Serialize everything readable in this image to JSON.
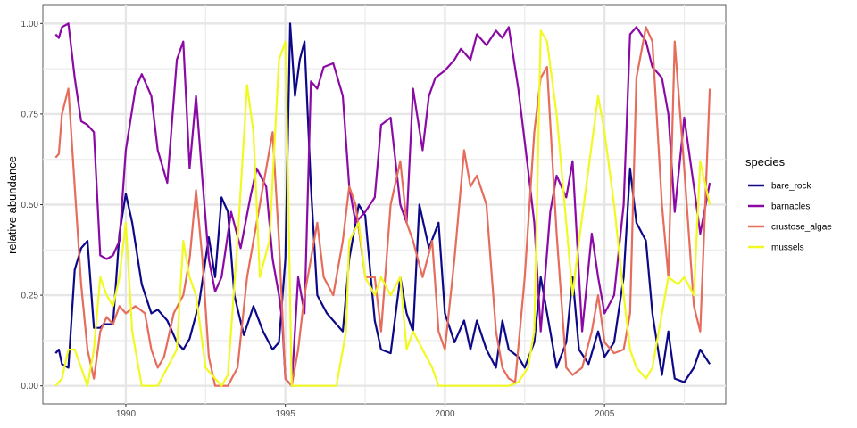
{
  "chart_data": {
    "type": "line",
    "xlabel": "",
    "ylabel": "relative abundance",
    "xlim": [
      1987.4,
      2008.8
    ],
    "ylim": [
      -0.05,
      1.05
    ],
    "x_ticks": [
      1990,
      1995,
      2000,
      2005
    ],
    "y_ticks": [
      0.0,
      0.25,
      0.5,
      0.75,
      1.0
    ],
    "x_tick_labels": [
      "1990",
      "1995",
      "2000",
      "2005"
    ],
    "y_tick_labels": [
      "0.00",
      "0.25",
      "0.50",
      "0.75",
      "1.00"
    ],
    "grid": true,
    "legend_title": "species",
    "legend_position": "right",
    "series": [
      {
        "name": "bare_rock",
        "color": "#0d0887",
        "x": [
          1987.8,
          1987.9,
          1988.0,
          1988.2,
          1988.4,
          1988.6,
          1988.8,
          1989.0,
          1989.2,
          1989.3,
          1989.6,
          1989.8,
          1990.0,
          1990.2,
          1990.5,
          1990.8,
          1991.0,
          1991.3,
          1991.6,
          1991.8,
          1992.0,
          1992.3,
          1992.5,
          1992.6,
          1992.8,
          1993.0,
          1993.2,
          1993.4,
          1993.7,
          1994.0,
          1994.3,
          1994.6,
          1994.8,
          1995.0,
          1995.15,
          1995.3,
          1995.45,
          1995.6,
          1995.8,
          1996.0,
          1996.3,
          1996.5,
          1996.8,
          1997.0,
          1997.3,
          1997.5,
          1997.8,
          1998.0,
          1998.3,
          1998.6,
          1998.8,
          1999.0,
          1999.2,
          1999.5,
          1999.8,
          2000.0,
          2000.3,
          2000.6,
          2000.8,
          2001.0,
          2001.3,
          2001.6,
          2001.8,
          2002.0,
          2002.3,
          2002.5,
          2002.8,
          2003.0,
          2003.3,
          2003.5,
          2003.8,
          2004.0,
          2004.2,
          2004.5,
          2004.8,
          2005.0,
          2005.3,
          2005.6,
          2005.8,
          2006.0,
          2006.3,
          2006.5,
          2006.8,
          2007.0,
          2007.2,
          2007.5,
          2007.8,
          2008.0,
          2008.3
        ],
        "y": [
          0.09,
          0.1,
          0.06,
          0.05,
          0.32,
          0.38,
          0.4,
          0.16,
          0.16,
          0.17,
          0.17,
          0.42,
          0.53,
          0.45,
          0.28,
          0.2,
          0.21,
          0.18,
          0.12,
          0.1,
          0.13,
          0.23,
          0.35,
          0.41,
          0.3,
          0.52,
          0.48,
          0.25,
          0.14,
          0.22,
          0.15,
          0.1,
          0.12,
          0.35,
          1.0,
          0.8,
          0.9,
          0.95,
          0.55,
          0.25,
          0.2,
          0.18,
          0.15,
          0.35,
          0.5,
          0.47,
          0.18,
          0.1,
          0.09,
          0.3,
          0.2,
          0.15,
          0.5,
          0.38,
          0.45,
          0.2,
          0.12,
          0.18,
          0.1,
          0.18,
          0.1,
          0.05,
          0.18,
          0.1,
          0.08,
          0.05,
          0.12,
          0.3,
          0.15,
          0.05,
          0.12,
          0.3,
          0.1,
          0.06,
          0.15,
          0.08,
          0.12,
          0.3,
          0.6,
          0.45,
          0.4,
          0.2,
          0.03,
          0.15,
          0.02,
          0.01,
          0.05,
          0.1,
          0.06
        ]
      },
      {
        "name": "barnacles",
        "color": "#8b0aa5",
        "x": [
          1987.8,
          1987.9,
          1988.0,
          1988.2,
          1988.4,
          1988.6,
          1988.8,
          1989.0,
          1989.2,
          1989.4,
          1989.6,
          1989.8,
          1990.0,
          1990.3,
          1990.5,
          1990.8,
          1991.0,
          1991.3,
          1991.6,
          1991.8,
          1992.0,
          1992.2,
          1992.4,
          1992.6,
          1992.8,
          1993.0,
          1993.3,
          1993.6,
          1993.9,
          1994.1,
          1994.4,
          1994.6,
          1994.8,
          1994.9,
          1995.0,
          1995.2,
          1995.4,
          1995.6,
          1995.8,
          1996.0,
          1996.2,
          1996.5,
          1996.8,
          1997.0,
          1997.2,
          1997.5,
          1997.8,
          1998.0,
          1998.3,
          1998.6,
          1998.8,
          1999.0,
          1999.3,
          1999.5,
          1999.7,
          2000.0,
          2000.3,
          2000.5,
          2000.8,
          2001.0,
          2001.3,
          2001.6,
          2001.8,
          2002.0,
          2002.3,
          2002.6,
          2002.8,
          2003.0,
          2003.3,
          2003.5,
          2003.8,
          2004.0,
          2004.3,
          2004.6,
          2004.8,
          2005.0,
          2005.3,
          2005.6,
          2005.8,
          2006.0,
          2006.3,
          2006.5,
          2006.8,
          2007.0,
          2007.2,
          2007.5,
          2007.8,
          2008.0,
          2008.3
        ],
        "y": [
          0.97,
          0.96,
          0.99,
          1.0,
          0.85,
          0.73,
          0.72,
          0.7,
          0.36,
          0.35,
          0.36,
          0.4,
          0.65,
          0.82,
          0.86,
          0.8,
          0.65,
          0.56,
          0.9,
          0.95,
          0.6,
          0.8,
          0.57,
          0.35,
          0.26,
          0.3,
          0.48,
          0.38,
          0.52,
          0.6,
          0.55,
          0.35,
          0.25,
          0.18,
          0.02,
          0.0,
          0.3,
          0.2,
          0.84,
          0.82,
          0.88,
          0.89,
          0.8,
          0.55,
          0.45,
          0.48,
          0.52,
          0.72,
          0.74,
          0.5,
          0.45,
          0.82,
          0.65,
          0.8,
          0.85,
          0.87,
          0.9,
          0.93,
          0.9,
          0.97,
          0.94,
          0.98,
          0.96,
          0.99,
          0.82,
          0.6,
          0.45,
          0.15,
          0.48,
          0.58,
          0.52,
          0.62,
          0.15,
          0.42,
          0.3,
          0.2,
          0.25,
          0.5,
          0.97,
          0.99,
          0.95,
          0.88,
          0.85,
          0.75,
          0.48,
          0.74,
          0.55,
          0.42,
          0.56
        ]
      },
      {
        "name": "crustose_algae",
        "color": "#e66c5c",
        "x": [
          1987.8,
          1987.9,
          1988.0,
          1988.2,
          1988.4,
          1988.6,
          1988.8,
          1989.0,
          1989.2,
          1989.4,
          1989.6,
          1989.8,
          1990.0,
          1990.3,
          1990.6,
          1990.8,
          1991.0,
          1991.2,
          1991.5,
          1991.8,
          1992.0,
          1992.2,
          1992.4,
          1992.6,
          1992.8,
          1993.0,
          1993.2,
          1993.5,
          1993.8,
          1994.0,
          1994.2,
          1994.4,
          1994.6,
          1994.8,
          1995.0,
          1995.2,
          1995.4,
          1995.6,
          1995.8,
          1996.0,
          1996.2,
          1996.5,
          1996.8,
          1997.0,
          1997.2,
          1997.5,
          1997.8,
          1998.0,
          1998.3,
          1998.6,
          1998.8,
          1999.0,
          1999.3,
          1999.6,
          1999.8,
          2000.0,
          2000.3,
          2000.6,
          2000.8,
          2001.0,
          2001.3,
          2001.6,
          2001.8,
          2002.0,
          2002.2,
          2002.5,
          2002.8,
          2003.0,
          2003.2,
          2003.5,
          2003.8,
          2004.0,
          2004.3,
          2004.6,
          2004.8,
          2005.0,
          2005.3,
          2005.6,
          2005.8,
          2006.0,
          2006.3,
          2006.5,
          2006.8,
          2007.0,
          2007.2,
          2007.5,
          2007.8,
          2008.0,
          2008.3
        ],
        "y": [
          0.63,
          0.64,
          0.75,
          0.82,
          0.55,
          0.28,
          0.1,
          0.02,
          0.15,
          0.19,
          0.17,
          0.22,
          0.2,
          0.22,
          0.2,
          0.1,
          0.05,
          0.08,
          0.2,
          0.25,
          0.35,
          0.54,
          0.35,
          0.08,
          0.0,
          0.0,
          0.0,
          0.05,
          0.3,
          0.4,
          0.5,
          0.6,
          0.7,
          0.4,
          0.02,
          0.0,
          0.1,
          0.25,
          0.35,
          0.45,
          0.3,
          0.25,
          0.4,
          0.55,
          0.5,
          0.3,
          0.3,
          0.15,
          0.5,
          0.62,
          0.45,
          0.4,
          0.3,
          0.4,
          0.15,
          0.1,
          0.35,
          0.65,
          0.55,
          0.58,
          0.5,
          0.15,
          0.05,
          0.02,
          0.01,
          0.3,
          0.7,
          0.85,
          0.88,
          0.42,
          0.05,
          0.03,
          0.05,
          0.15,
          0.25,
          0.12,
          0.09,
          0.1,
          0.2,
          0.85,
          0.99,
          0.95,
          0.5,
          0.3,
          0.95,
          0.6,
          0.22,
          0.15,
          0.82
        ]
      },
      {
        "name": "mussels",
        "color": "#f0f921",
        "x": [
          1987.8,
          1988.0,
          1988.2,
          1988.4,
          1988.6,
          1988.8,
          1989.0,
          1989.2,
          1989.4,
          1989.6,
          1989.8,
          1990.0,
          1990.2,
          1990.5,
          1990.8,
          1991.0,
          1991.3,
          1991.6,
          1991.8,
          1992.0,
          1992.2,
          1992.5,
          1992.8,
          1993.0,
          1993.2,
          1993.5,
          1993.8,
          1994.0,
          1994.2,
          1994.5,
          1994.8,
          1995.0,
          1995.2,
          1995.4,
          1995.7,
          1996.0,
          1996.3,
          1996.6,
          1996.9,
          1997.0,
          1997.3,
          1997.5,
          1997.8,
          1998.0,
          1998.3,
          1998.6,
          1998.8,
          1999.0,
          1999.3,
          1999.6,
          1999.8,
          2000.0,
          2000.5,
          2001.0,
          2001.5,
          2002.0,
          2002.3,
          2002.6,
          2002.8,
          2003.0,
          2003.2,
          2003.5,
          2003.8,
          2004.0,
          2004.2,
          2004.5,
          2004.8,
          2005.0,
          2005.3,
          2005.6,
          2005.8,
          2006.0,
          2006.3,
          2006.5,
          2006.8,
          2007.0,
          2007.3,
          2007.5,
          2007.8,
          2008.0,
          2008.3
        ],
        "y": [
          0.0,
          0.02,
          0.1,
          0.1,
          0.05,
          0.0,
          0.1,
          0.3,
          0.25,
          0.22,
          0.3,
          0.45,
          0.15,
          0.0,
          0.0,
          0.0,
          0.05,
          0.1,
          0.4,
          0.3,
          0.25,
          0.05,
          0.02,
          0.0,
          0.03,
          0.4,
          0.83,
          0.7,
          0.3,
          0.4,
          0.9,
          0.95,
          0.0,
          0.0,
          0.0,
          0.0,
          0.0,
          0.0,
          0.15,
          0.4,
          0.45,
          0.3,
          0.25,
          0.3,
          0.25,
          0.3,
          0.1,
          0.15,
          0.1,
          0.05,
          0.0,
          0.0,
          0.0,
          0.0,
          0.0,
          0.0,
          0.01,
          0.05,
          0.15,
          0.98,
          0.95,
          0.75,
          0.45,
          0.25,
          0.4,
          0.6,
          0.8,
          0.7,
          0.5,
          0.25,
          0.1,
          0.05,
          0.02,
          0.05,
          0.2,
          0.3,
          0.28,
          0.3,
          0.25,
          0.62,
          0.5
        ]
      }
    ]
  }
}
